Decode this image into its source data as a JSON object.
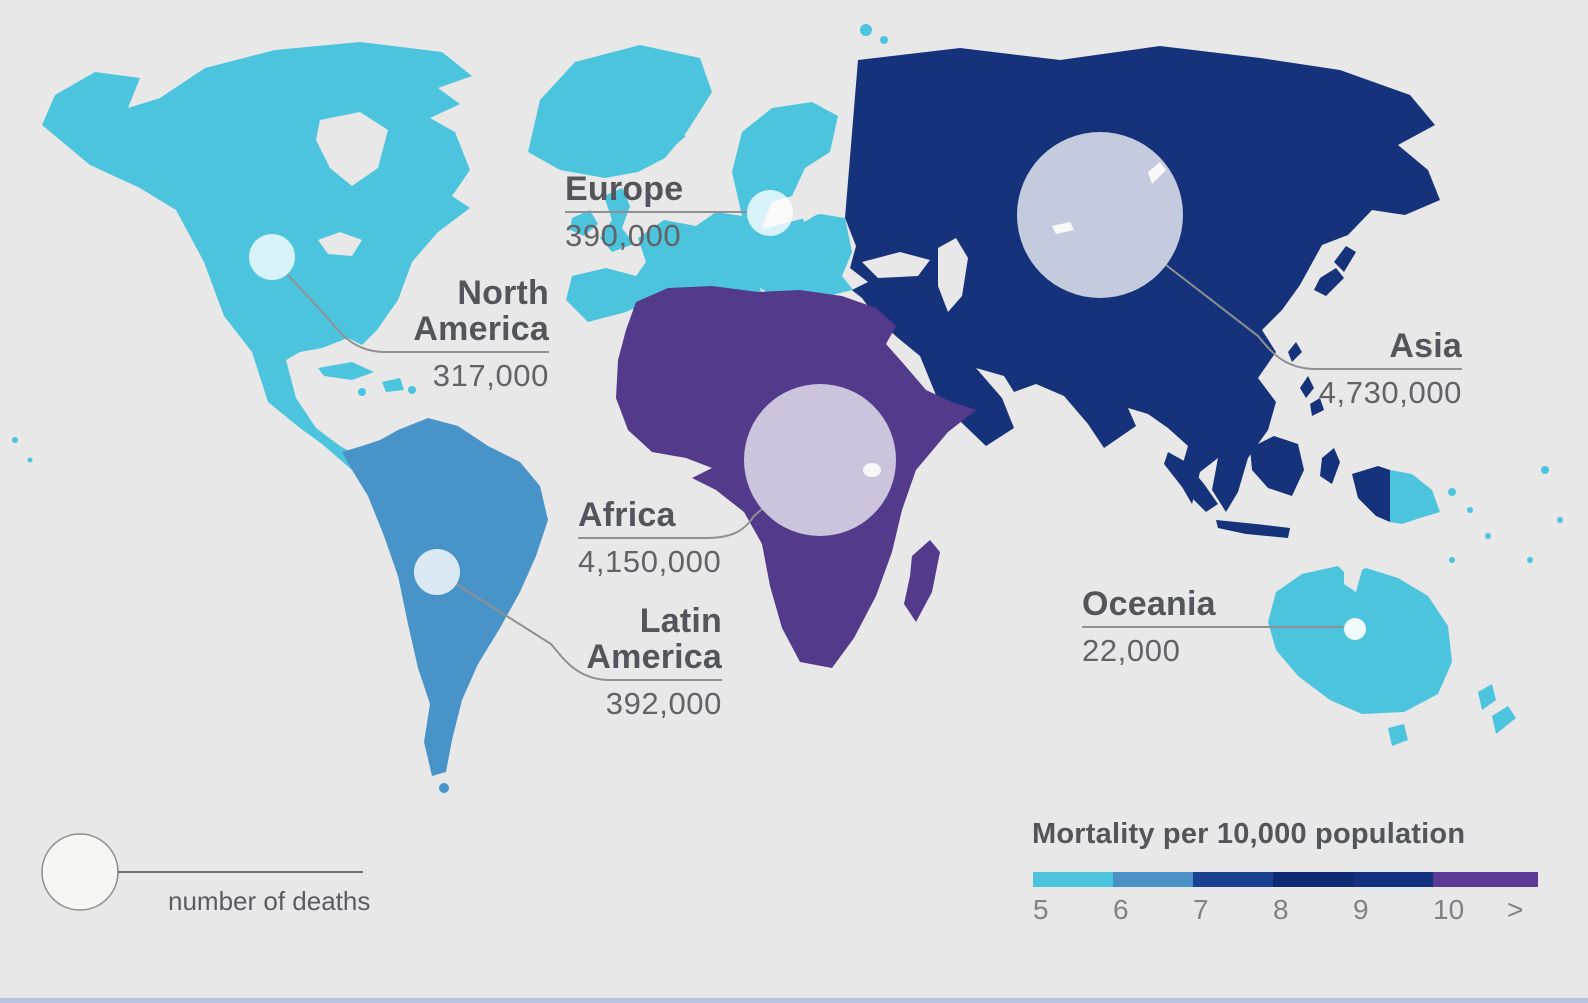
{
  "palette": {
    "background": "#e8e8e8",
    "cyan": "#4cc4de",
    "steel_blue": "#4893c8",
    "navy": "#16327b",
    "purple": "#533a8b",
    "bubble": "#ffffff",
    "line": "#8f9092",
    "size_legend_circle_fill": "#f6f6f5",
    "size_legend_circle_stroke": "#8b8b8b"
  },
  "regions": {
    "europe": {
      "label": "Europe",
      "deaths": "390,000"
    },
    "north_america": {
      "label": "North America",
      "deaths": "317,000"
    },
    "asia": {
      "label": "Asia",
      "deaths": "4,730,000"
    },
    "africa": {
      "label": "Africa",
      "deaths": "4,150,000"
    },
    "latin_america": {
      "label": "Latin America",
      "deaths": "392,000"
    },
    "oceania": {
      "label": "Oceania",
      "deaths": "22,000"
    }
  },
  "size_legend": {
    "label": "number of deaths"
  },
  "scale_legend": {
    "title": "Mortality per 10,000 population",
    "ticks": [
      "5",
      "6",
      "7",
      "8",
      "9",
      "10",
      ">"
    ],
    "colors": [
      "#4cc4de",
      "#4a90c4",
      "#1b4290",
      "#0d2a72",
      "#143180",
      "#5b3b96"
    ]
  }
}
